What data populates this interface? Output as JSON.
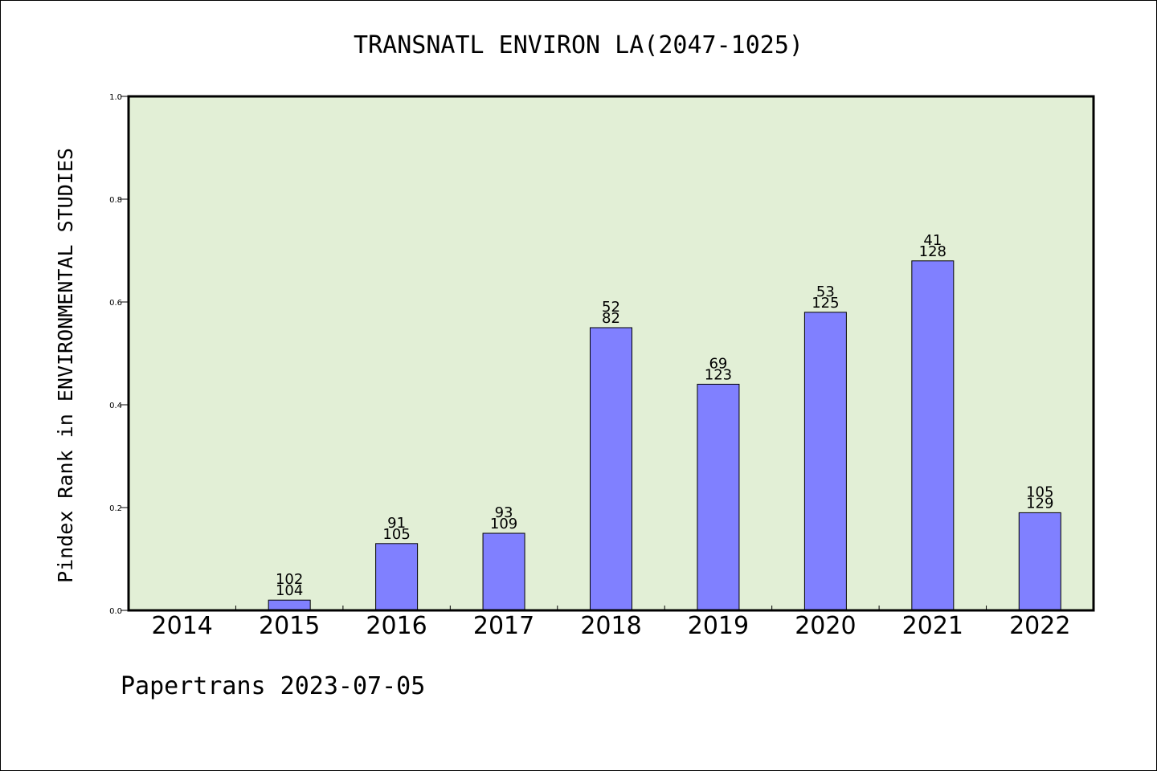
{
  "chart_data": {
    "type": "bar",
    "title": "TRANSNATL ENVIRON LA(2047-1025)",
    "ylabel": "Pindex Rank in ENVIRONMENTAL STUDIES",
    "xlabel": "",
    "ylim": [
      0,
      1.0
    ],
    "yticks": [
      "0.0",
      "0.2",
      "0.4",
      "0.6",
      "0.8",
      "1.0"
    ],
    "categories": [
      "2014",
      "2015",
      "2016",
      "2017",
      "2018",
      "2019",
      "2020",
      "2021",
      "2022"
    ],
    "values": [
      null,
      0.02,
      0.13,
      0.15,
      0.55,
      0.44,
      0.58,
      0.68,
      0.19
    ],
    "labels_top": [
      null,
      "102",
      "91",
      "93",
      "52",
      "69",
      "53",
      "41",
      "105"
    ],
    "labels_bottom": [
      null,
      "104",
      "105",
      "109",
      "82",
      "123",
      "125",
      "128",
      "129"
    ],
    "grid": false,
    "colors": {
      "plot_background": "#e2efd6",
      "bar_fill": "#8080ff",
      "bar_stroke": "#000000"
    }
  },
  "footer": {
    "text": "Papertrans 2023-07-05"
  }
}
